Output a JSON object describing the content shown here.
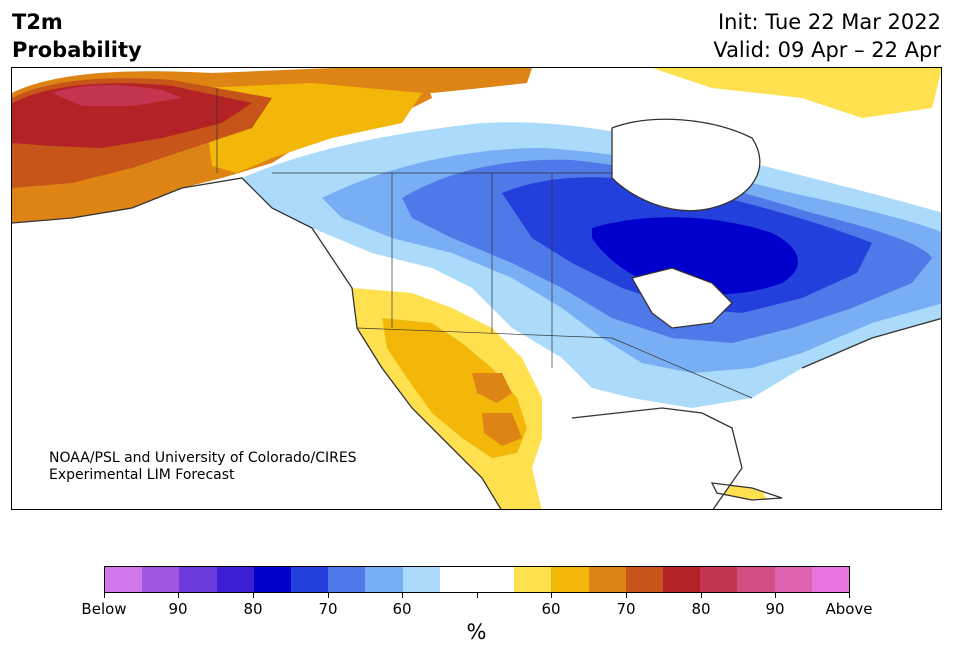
{
  "header": {
    "title_line1": "T2m",
    "title_line2": "Probability",
    "init": "Init: Tue 22 Mar 2022",
    "valid": "Valid: 09 Apr – 22 Apr"
  },
  "credit": {
    "line1": "NOAA/PSL and University of Colorado/CIRES",
    "line2": "Experimental LIM Forecast"
  },
  "colors": {
    "below": [
      "#d277e9",
      "#a056e3",
      "#6c3bdb",
      "#3a20d2",
      "#0000cc",
      "#2340dc",
      "#4f79e9",
      "#78aef4",
      "#abdafb"
    ],
    "neutral": [
      "#ffffff",
      "#ffffff"
    ],
    "above": [
      "#ffe04f",
      "#f2b709",
      "#de8414",
      "#c75419",
      "#b32225",
      "#c4354f",
      "#d14f82",
      "#dd62b0",
      "#e874dd"
    ],
    "land_outline": "#333333"
  },
  "colorbar": {
    "labels": [
      "Below",
      "90",
      "80",
      "70",
      "60",
      "60",
      "70",
      "80",
      "90",
      "Above"
    ],
    "unit": "%"
  }
}
